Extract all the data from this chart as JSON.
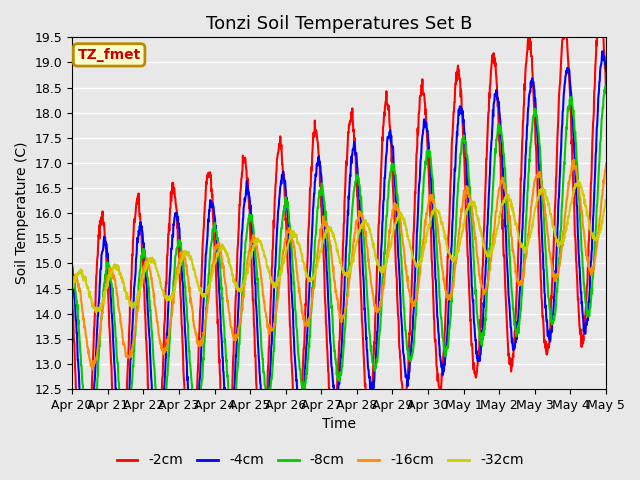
{
  "title": "Tonzi Soil Temperatures Set B",
  "xlabel": "Time",
  "ylabel": "Soil Temperature (C)",
  "ylim": [
    12.5,
    19.5
  ],
  "xlim": [
    0,
    360
  ],
  "x_tick_labels": [
    "Apr 20",
    "Apr 21",
    "Apr 22",
    "Apr 23",
    "Apr 24",
    "Apr 25",
    "Apr 26",
    "Apr 27",
    "Apr 28",
    "Apr 29",
    "Apr 30",
    "May 1",
    "May 2",
    "May 3",
    "May 4",
    "May 5"
  ],
  "x_tick_positions": [
    0,
    24,
    48,
    72,
    96,
    120,
    144,
    168,
    192,
    216,
    240,
    264,
    288,
    312,
    336,
    360
  ],
  "y_ticks": [
    12.5,
    13.0,
    13.5,
    14.0,
    14.5,
    15.0,
    15.5,
    16.0,
    16.5,
    17.0,
    17.5,
    18.0,
    18.5,
    19.0,
    19.5
  ],
  "series_colors": [
    "#FF0000",
    "#0000FF",
    "#00CC00",
    "#FF8C00",
    "#CCCC00"
  ],
  "series_labels": [
    "-2cm",
    "-4cm",
    "-8cm",
    "-16cm",
    "-32cm"
  ],
  "legend_label": "TZ_fmet",
  "legend_bg": "#FFFFCC",
  "legend_border": "#BB8800",
  "bg_color": "#E8E8E8",
  "plot_bg": "#E8E8E8",
  "grid_color": "#FFFFFF",
  "title_fontsize": 13,
  "axis_fontsize": 10,
  "tick_fontsize": 9,
  "legend_fontsize": 10,
  "line_width": 1.5,
  "hours_total": 360
}
